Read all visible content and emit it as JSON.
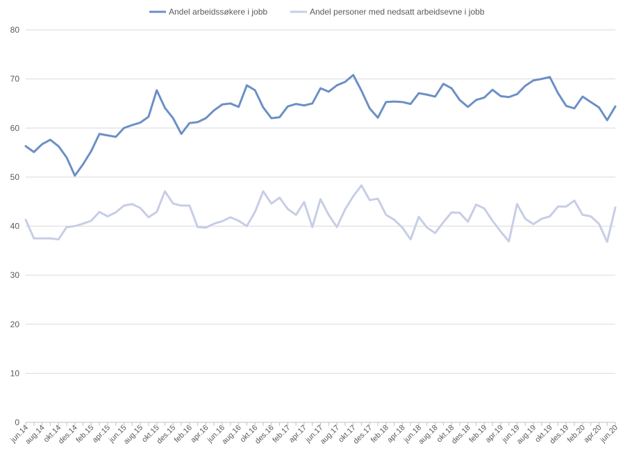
{
  "chart_data": {
    "type": "line",
    "title": "",
    "xlabel": "",
    "ylabel": "",
    "ylim": [
      0,
      80
    ],
    "yticks": [
      0,
      10,
      20,
      30,
      40,
      50,
      60,
      70,
      80
    ],
    "grid": true,
    "legend_position": "top",
    "x": [
      "jun.14",
      "jul.14",
      "aug.14",
      "sep.14",
      "okt.14",
      "nov.14",
      "des.14",
      "jan.15",
      "feb.15",
      "mar.15",
      "apr.15",
      "mai.15",
      "jun.15",
      "jul.15",
      "aug.15",
      "sep.15",
      "okt.15",
      "nov.15",
      "des.15",
      "jan.16",
      "feb.16",
      "mar.16",
      "apr.16",
      "mai.16",
      "jun.16",
      "jul.16",
      "aug.16",
      "sep.16",
      "okt.16",
      "nov.16",
      "des.16",
      "jan.17",
      "feb.17",
      "mar.17",
      "apr.17",
      "mai.17",
      "jun.17",
      "jul.17",
      "aug.17",
      "sep.17",
      "okt.17",
      "nov.17",
      "des.17",
      "jan.18",
      "feb.18",
      "mar.18",
      "apr.18",
      "mai.18",
      "jun.18",
      "jul.18",
      "aug.18",
      "sep.18",
      "okt.18",
      "nov.18",
      "des.18",
      "jan.19",
      "feb.19",
      "mar.19",
      "apr.19",
      "mai.19",
      "jun.19",
      "jul.19",
      "aug.19",
      "sep.19",
      "okt.19",
      "nov.19",
      "des.19",
      "jan.20",
      "feb.20",
      "mar.20",
      "apr.20",
      "mai.20",
      "jun.20"
    ],
    "tick_labels": [
      "jun.14",
      "aug.14",
      "okt.14",
      "des.14",
      "feb.15",
      "apr.15",
      "jun.15",
      "aug.15",
      "okt.15",
      "des.15",
      "feb.16",
      "apr.16",
      "jun.16",
      "aug.16",
      "okt.16",
      "des.16",
      "feb.17",
      "apr.17",
      "jun.17",
      "aug.17",
      "okt.17",
      "des.17",
      "feb.18",
      "apr.18",
      "jun.18",
      "aug.18",
      "okt.18",
      "des.18",
      "feb.19",
      "apr.19",
      "jun.19",
      "aug.19",
      "okt.19",
      "des.19",
      "feb.20",
      "apr.20",
      "jun.20"
    ],
    "series": [
      {
        "name": "Andel arbeidssøkere i jobb",
        "color": "#6b8fc6",
        "values": [
          56.3,
          55.1,
          56.7,
          57.6,
          56.3,
          54.0,
          50.3,
          52.6,
          55.3,
          58.8,
          58.5,
          58.2,
          60.0,
          60.6,
          61.1,
          62.3,
          67.7,
          64.1,
          62.0,
          58.8,
          61.0,
          61.2,
          62.0,
          63.6,
          64.8,
          65.0,
          64.3,
          68.7,
          67.7,
          64.2,
          62.0,
          62.2,
          64.4,
          64.9,
          64.6,
          65.0,
          68.1,
          67.4,
          68.7,
          69.4,
          70.8,
          67.6,
          64.0,
          62.1,
          65.3,
          65.4,
          65.3,
          64.9,
          67.1,
          66.8,
          66.4,
          69.0,
          68.1,
          65.7,
          64.3,
          65.7,
          66.2,
          67.8,
          66.5,
          66.3,
          66.9,
          68.6,
          69.7,
          70.0,
          70.4,
          67.1,
          64.5,
          64.0,
          66.4,
          65.3,
          64.2,
          61.6,
          64.4
        ]
      },
      {
        "name": "Andel personer med nedsatt arbeidsevne i jobb",
        "color": "#c7cde6",
        "values": [
          41.3,
          37.5,
          37.5,
          37.5,
          37.3,
          39.8,
          40.0,
          40.5,
          41.1,
          42.9,
          42.0,
          42.8,
          44.2,
          44.5,
          43.7,
          41.8,
          42.9,
          47.1,
          44.6,
          44.2,
          44.2,
          39.8,
          39.7,
          40.5,
          41.0,
          41.8,
          41.1,
          40.0,
          42.9,
          47.1,
          44.6,
          45.8,
          43.5,
          42.3,
          44.9,
          39.8,
          45.5,
          42.3,
          39.8,
          43.4,
          46.1,
          48.3,
          45.3,
          45.6,
          42.3,
          41.3,
          39.7,
          37.3,
          41.9,
          39.7,
          38.6,
          40.8,
          42.8,
          42.7,
          40.9,
          44.4,
          43.6,
          41.1,
          38.9,
          36.9,
          44.5,
          41.5,
          40.4,
          41.5,
          42.0,
          44.0,
          44.0,
          45.2,
          42.3,
          42.0,
          40.5,
          36.8,
          43.8
        ]
      }
    ]
  }
}
